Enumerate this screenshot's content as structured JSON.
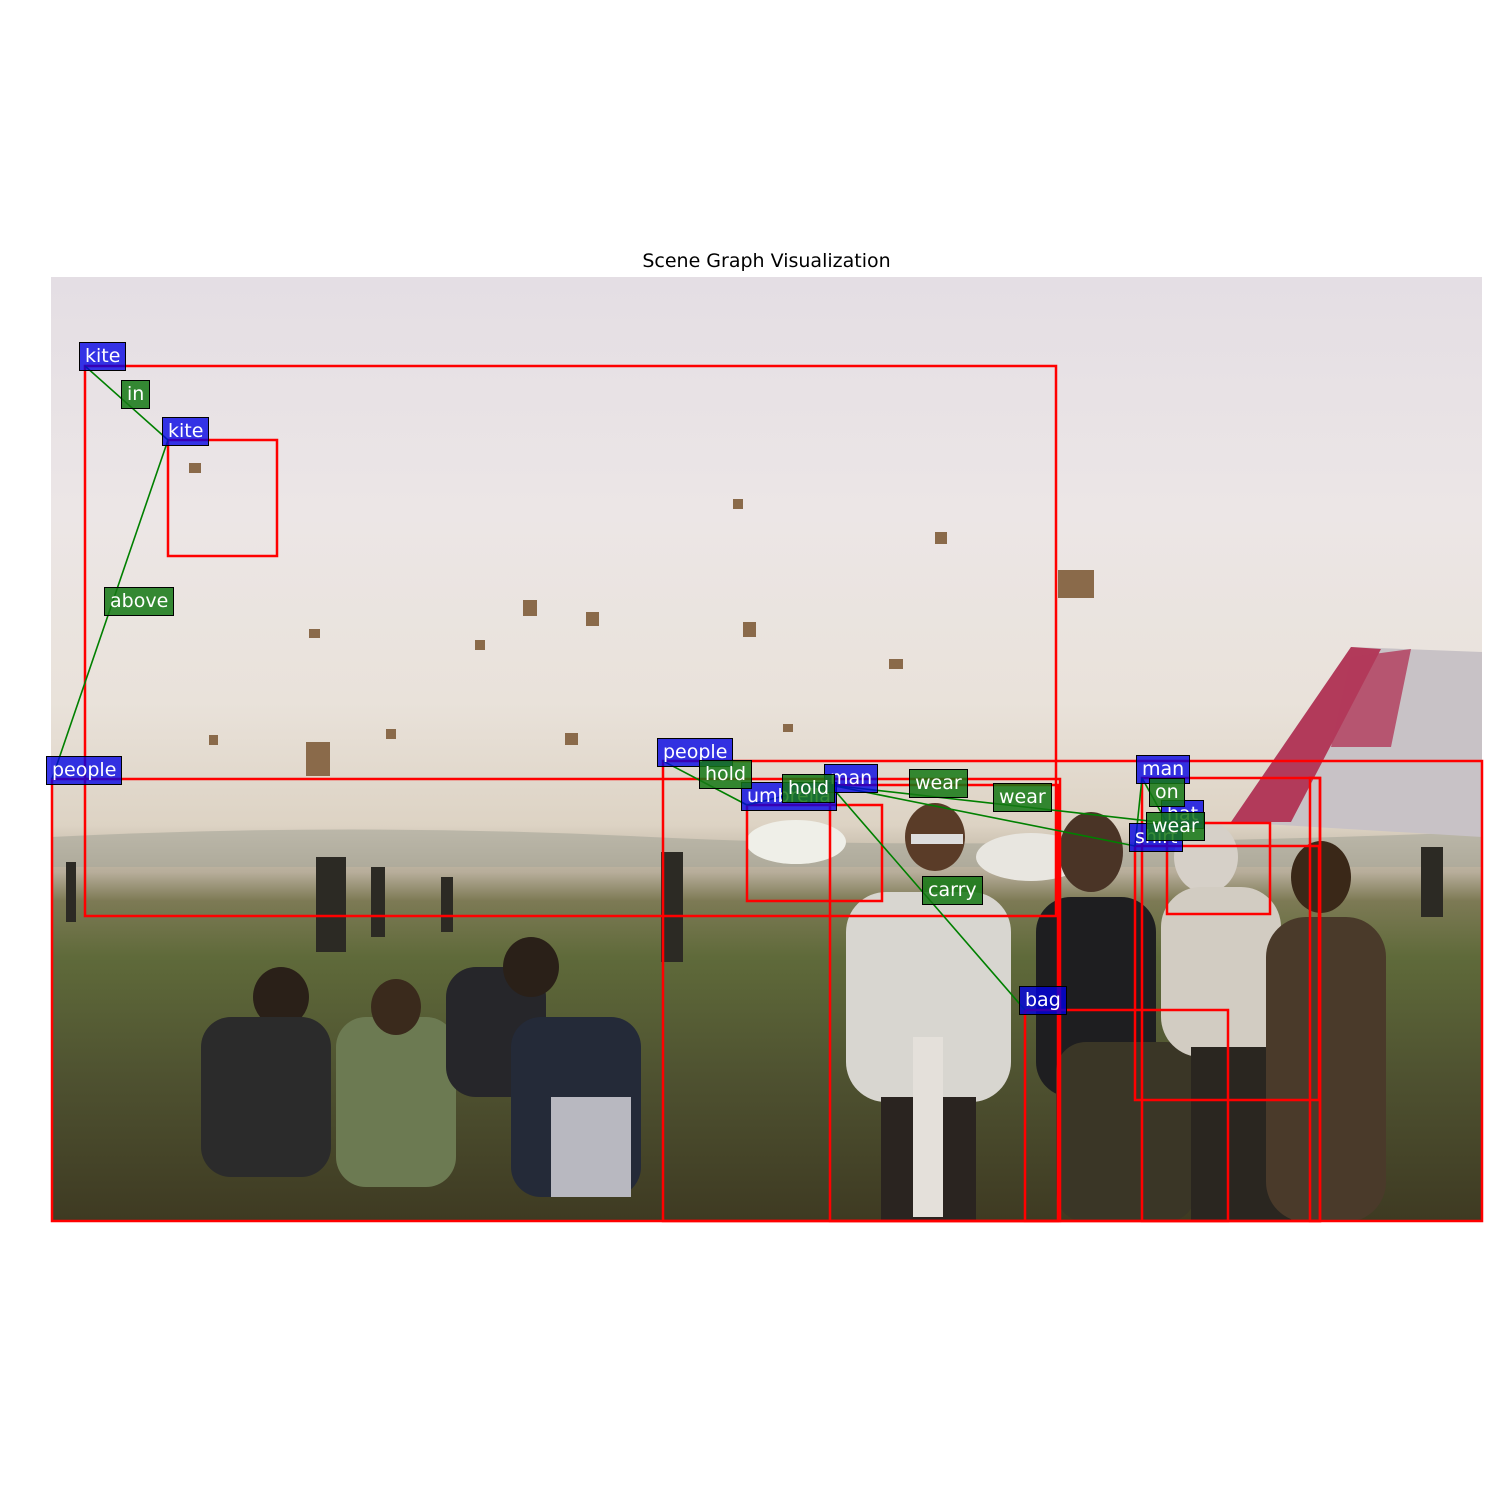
{
  "title": "Scene Graph Visualization",
  "colors": {
    "box": "#ff0000",
    "object_label": "#0000e6",
    "relation_label": "#1a781a",
    "edge": "#008000"
  },
  "objects": [
    {
      "label": "kite"
    },
    {
      "label": "kite"
    },
    {
      "label": "people"
    },
    {
      "label": "people"
    },
    {
      "label": "umbrella"
    },
    {
      "label": "man"
    },
    {
      "label": "man"
    },
    {
      "label": "hat"
    },
    {
      "label": "shirt"
    },
    {
      "label": "bag"
    }
  ],
  "relations": [
    {
      "subject": "kite",
      "predicate": "in",
      "object": "kite"
    },
    {
      "subject": "kite",
      "predicate": "above",
      "object": "people"
    },
    {
      "subject": "people",
      "predicate": "hold",
      "object": "umbrella"
    },
    {
      "subject": "man",
      "predicate": "hold",
      "object": "umbrella"
    },
    {
      "subject": "man",
      "predicate": "wear",
      "object": "hat"
    },
    {
      "subject": "man",
      "predicate": "wear",
      "object": "shirt"
    },
    {
      "subject": "man",
      "predicate": "carry",
      "object": "bag"
    },
    {
      "subject": "man",
      "predicate": "wear",
      "object": "shirt"
    },
    {
      "subject": "hat",
      "predicate": "on",
      "object": "man"
    },
    {
      "subject": "man",
      "predicate": "wear",
      "object": "hat"
    }
  ]
}
